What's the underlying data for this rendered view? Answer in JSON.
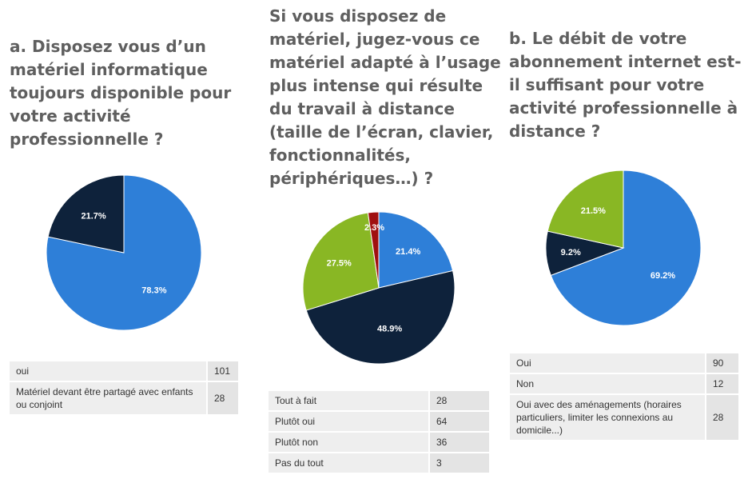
{
  "colors": {
    "blue": "#2e7fd8",
    "navy": "#0e223b",
    "green": "#89b724",
    "red": "#a01010"
  },
  "chart_data": [
    {
      "type": "pie",
      "title": "a. Disposez vous d’un matériel informatique toujours disponible pour votre activité professionnelle ?",
      "slices": [
        {
          "label": "oui",
          "value": 101,
          "percent_label": "78.3%",
          "color": "#2e7fd8"
        },
        {
          "label": "Matériel devant être partagé avec enfants ou conjoint",
          "value": 28,
          "percent_label": "21.7%",
          "color": "#0e223b"
        }
      ]
    },
    {
      "type": "pie",
      "title": "Si vous disposez de matériel, jugez-vous ce matériel adapté à l’usage plus intense qui résulte du travail à distance (taille de l’écran, clavier, fonctionnalités, périphériques…) ?",
      "slices": [
        {
          "label": "Tout à fait",
          "value": 28,
          "percent_label": "21.4%",
          "color": "#2e7fd8"
        },
        {
          "label": "Plutôt oui",
          "value": 64,
          "percent_label": "48.9%",
          "color": "#0e223b"
        },
        {
          "label": "Plutôt non",
          "value": 36,
          "percent_label": "27.5%",
          "color": "#89b724"
        },
        {
          "label": "Pas du tout",
          "value": 3,
          "percent_label": "2.3%",
          "color": "#a01010"
        }
      ]
    },
    {
      "type": "pie",
      "title": "b. Le débit de votre abonnement internet est-il suffisant pour votre activité professionnelle à distance ?",
      "slices": [
        {
          "label": "Oui",
          "value": 90,
          "percent_label": "69.2%",
          "color": "#2e7fd8"
        },
        {
          "label": "Non",
          "value": 12,
          "percent_label": "9.2%",
          "color": "#0e223b"
        },
        {
          "label": "Oui avec des aménagements (horaires particuliers, limiter les connexions au domicile...)",
          "value": 28,
          "percent_label": "21.5%",
          "color": "#89b724"
        }
      ]
    }
  ]
}
